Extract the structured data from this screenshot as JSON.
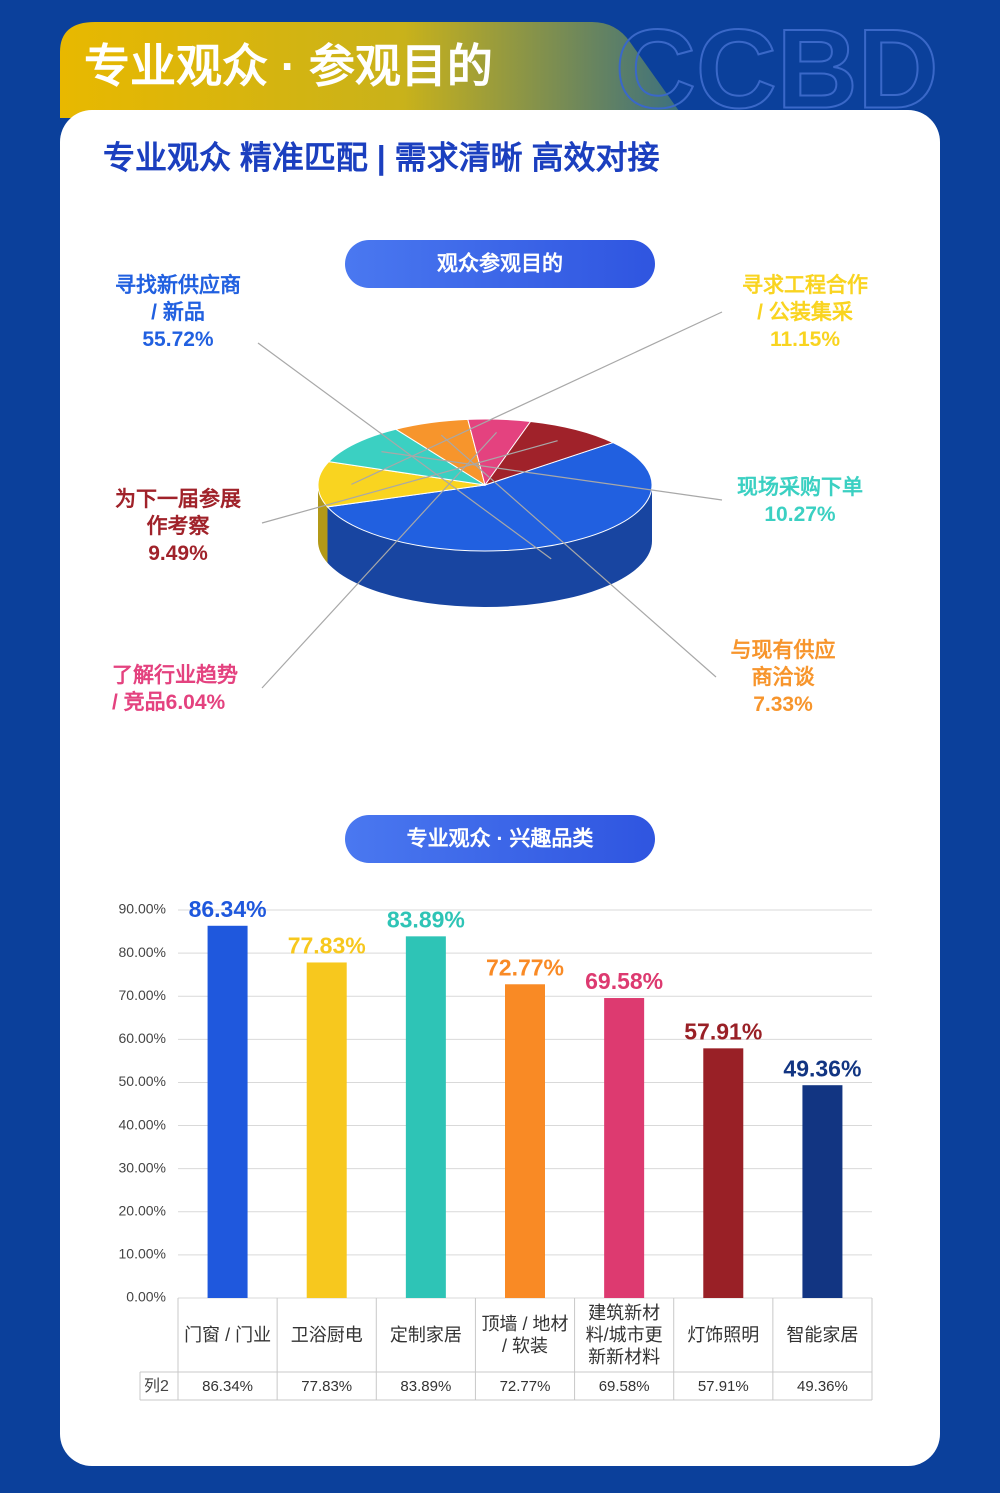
{
  "header": {
    "title": "专业观众 · 参观目的",
    "watermark": "CCBD",
    "subtitle": "专业观众 精准匹配 | 需求清晰 高效对接"
  },
  "chart_data": [
    {
      "type": "pie",
      "title": "观众参观目的",
      "categories": [
        "寻找新供应商\n/ 新品",
        "寻求工程合作\n/ 公装集采",
        "现场采购下单",
        "与现有供应\n商洽谈",
        "了解行业趋势\n/ 竞品",
        "为下一届参展\n作考察"
      ],
      "values": [
        55.72,
        11.15,
        10.27,
        7.33,
        6.04,
        9.49
      ],
      "value_labels": [
        "55.72%",
        "11.15%",
        "10.27%",
        "7.33%",
        "6.04%",
        "9.49%"
      ],
      "colors": [
        "#2160e0",
        "#f9d420",
        "#3bd0c2",
        "#f7952c",
        "#e4427f",
        "#a0222a"
      ]
    },
    {
      "type": "bar",
      "title": "专业观众 · 兴趣品类",
      "categories": [
        "门窗 / 门业",
        "卫浴厨电",
        "定制家居",
        "顶墙 / 地材 / 软装",
        "建筑新材料/城市更新新材料",
        "灯饰照明",
        "智能家居"
      ],
      "values": [
        86.34,
        77.83,
        83.89,
        72.77,
        69.58,
        57.91,
        49.36
      ],
      "value_labels": [
        "86.34%",
        "77.83%",
        "83.89%",
        "72.77%",
        "69.58%",
        "57.91%",
        "49.36%"
      ],
      "colors": [
        "#1f58dd",
        "#f7c81e",
        "#2ec4b6",
        "#f98a25",
        "#dd3a70",
        "#992026",
        "#123582"
      ],
      "ylim": [
        0,
        90
      ],
      "yticks": [
        {
          "value": 0,
          "label": "0.00%"
        },
        {
          "value": 10,
          "label": "10.00%"
        },
        {
          "value": 20,
          "label": "20.00%"
        },
        {
          "value": 30,
          "label": "30.00%"
        },
        {
          "value": 40,
          "label": "40.00%"
        },
        {
          "value": 50,
          "label": "50.00%"
        },
        {
          "value": 60,
          "label": "60.00%"
        },
        {
          "value": 70,
          "label": "70.00%"
        },
        {
          "value": 80,
          "label": "80.00%"
        },
        {
          "value": 90,
          "label": "90.00%"
        }
      ],
      "grid": true,
      "table_row_label": "列2"
    }
  ]
}
